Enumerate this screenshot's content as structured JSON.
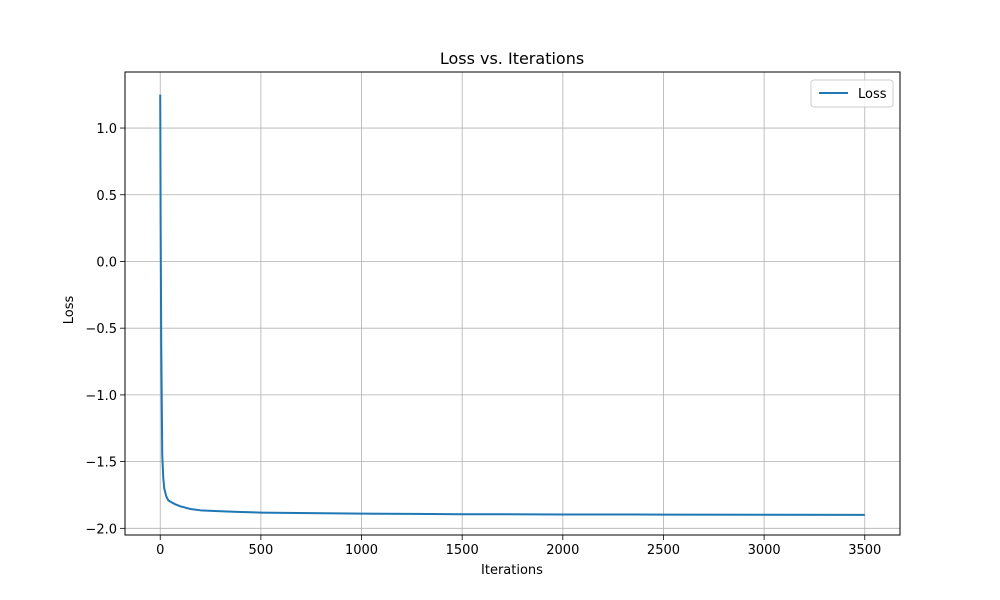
{
  "chart_data": {
    "type": "line",
    "title": "Loss vs. Iterations",
    "xlabel": "Iterations",
    "ylabel": "Loss",
    "xlim": [
      -175,
      3675
    ],
    "ylim": [
      -2.05,
      1.42
    ],
    "xticks": [
      0,
      500,
      1000,
      1500,
      2000,
      2500,
      3000,
      3500
    ],
    "yticks": [
      -2.0,
      -1.5,
      -1.0,
      -0.5,
      0.0,
      0.5,
      1.0
    ],
    "xtick_labels": [
      "0",
      "500",
      "1000",
      "1500",
      "2000",
      "2500",
      "3000",
      "3500"
    ],
    "ytick_labels": [
      "−2.0",
      "−1.5",
      "−1.0",
      "−0.5",
      "0.0",
      "0.5",
      "1.0"
    ],
    "grid": true,
    "legend_placement": "top-right",
    "color": "#1f77b4",
    "series": [
      {
        "name": "Loss",
        "x": [
          0,
          2,
          5,
          10,
          15,
          20,
          30,
          40,
          50,
          75,
          100,
          150,
          200,
          300,
          400,
          500,
          750,
          1000,
          1250,
          1500,
          2000,
          2500,
          3000,
          3500
        ],
        "y": [
          1.25,
          0.3,
          -0.6,
          -1.45,
          -1.62,
          -1.7,
          -1.76,
          -1.79,
          -1.8,
          -1.82,
          -1.835,
          -1.855,
          -1.865,
          -1.872,
          -1.878,
          -1.882,
          -1.886,
          -1.89,
          -1.892,
          -1.894,
          -1.896,
          -1.897,
          -1.898,
          -1.899
        ]
      }
    ]
  }
}
